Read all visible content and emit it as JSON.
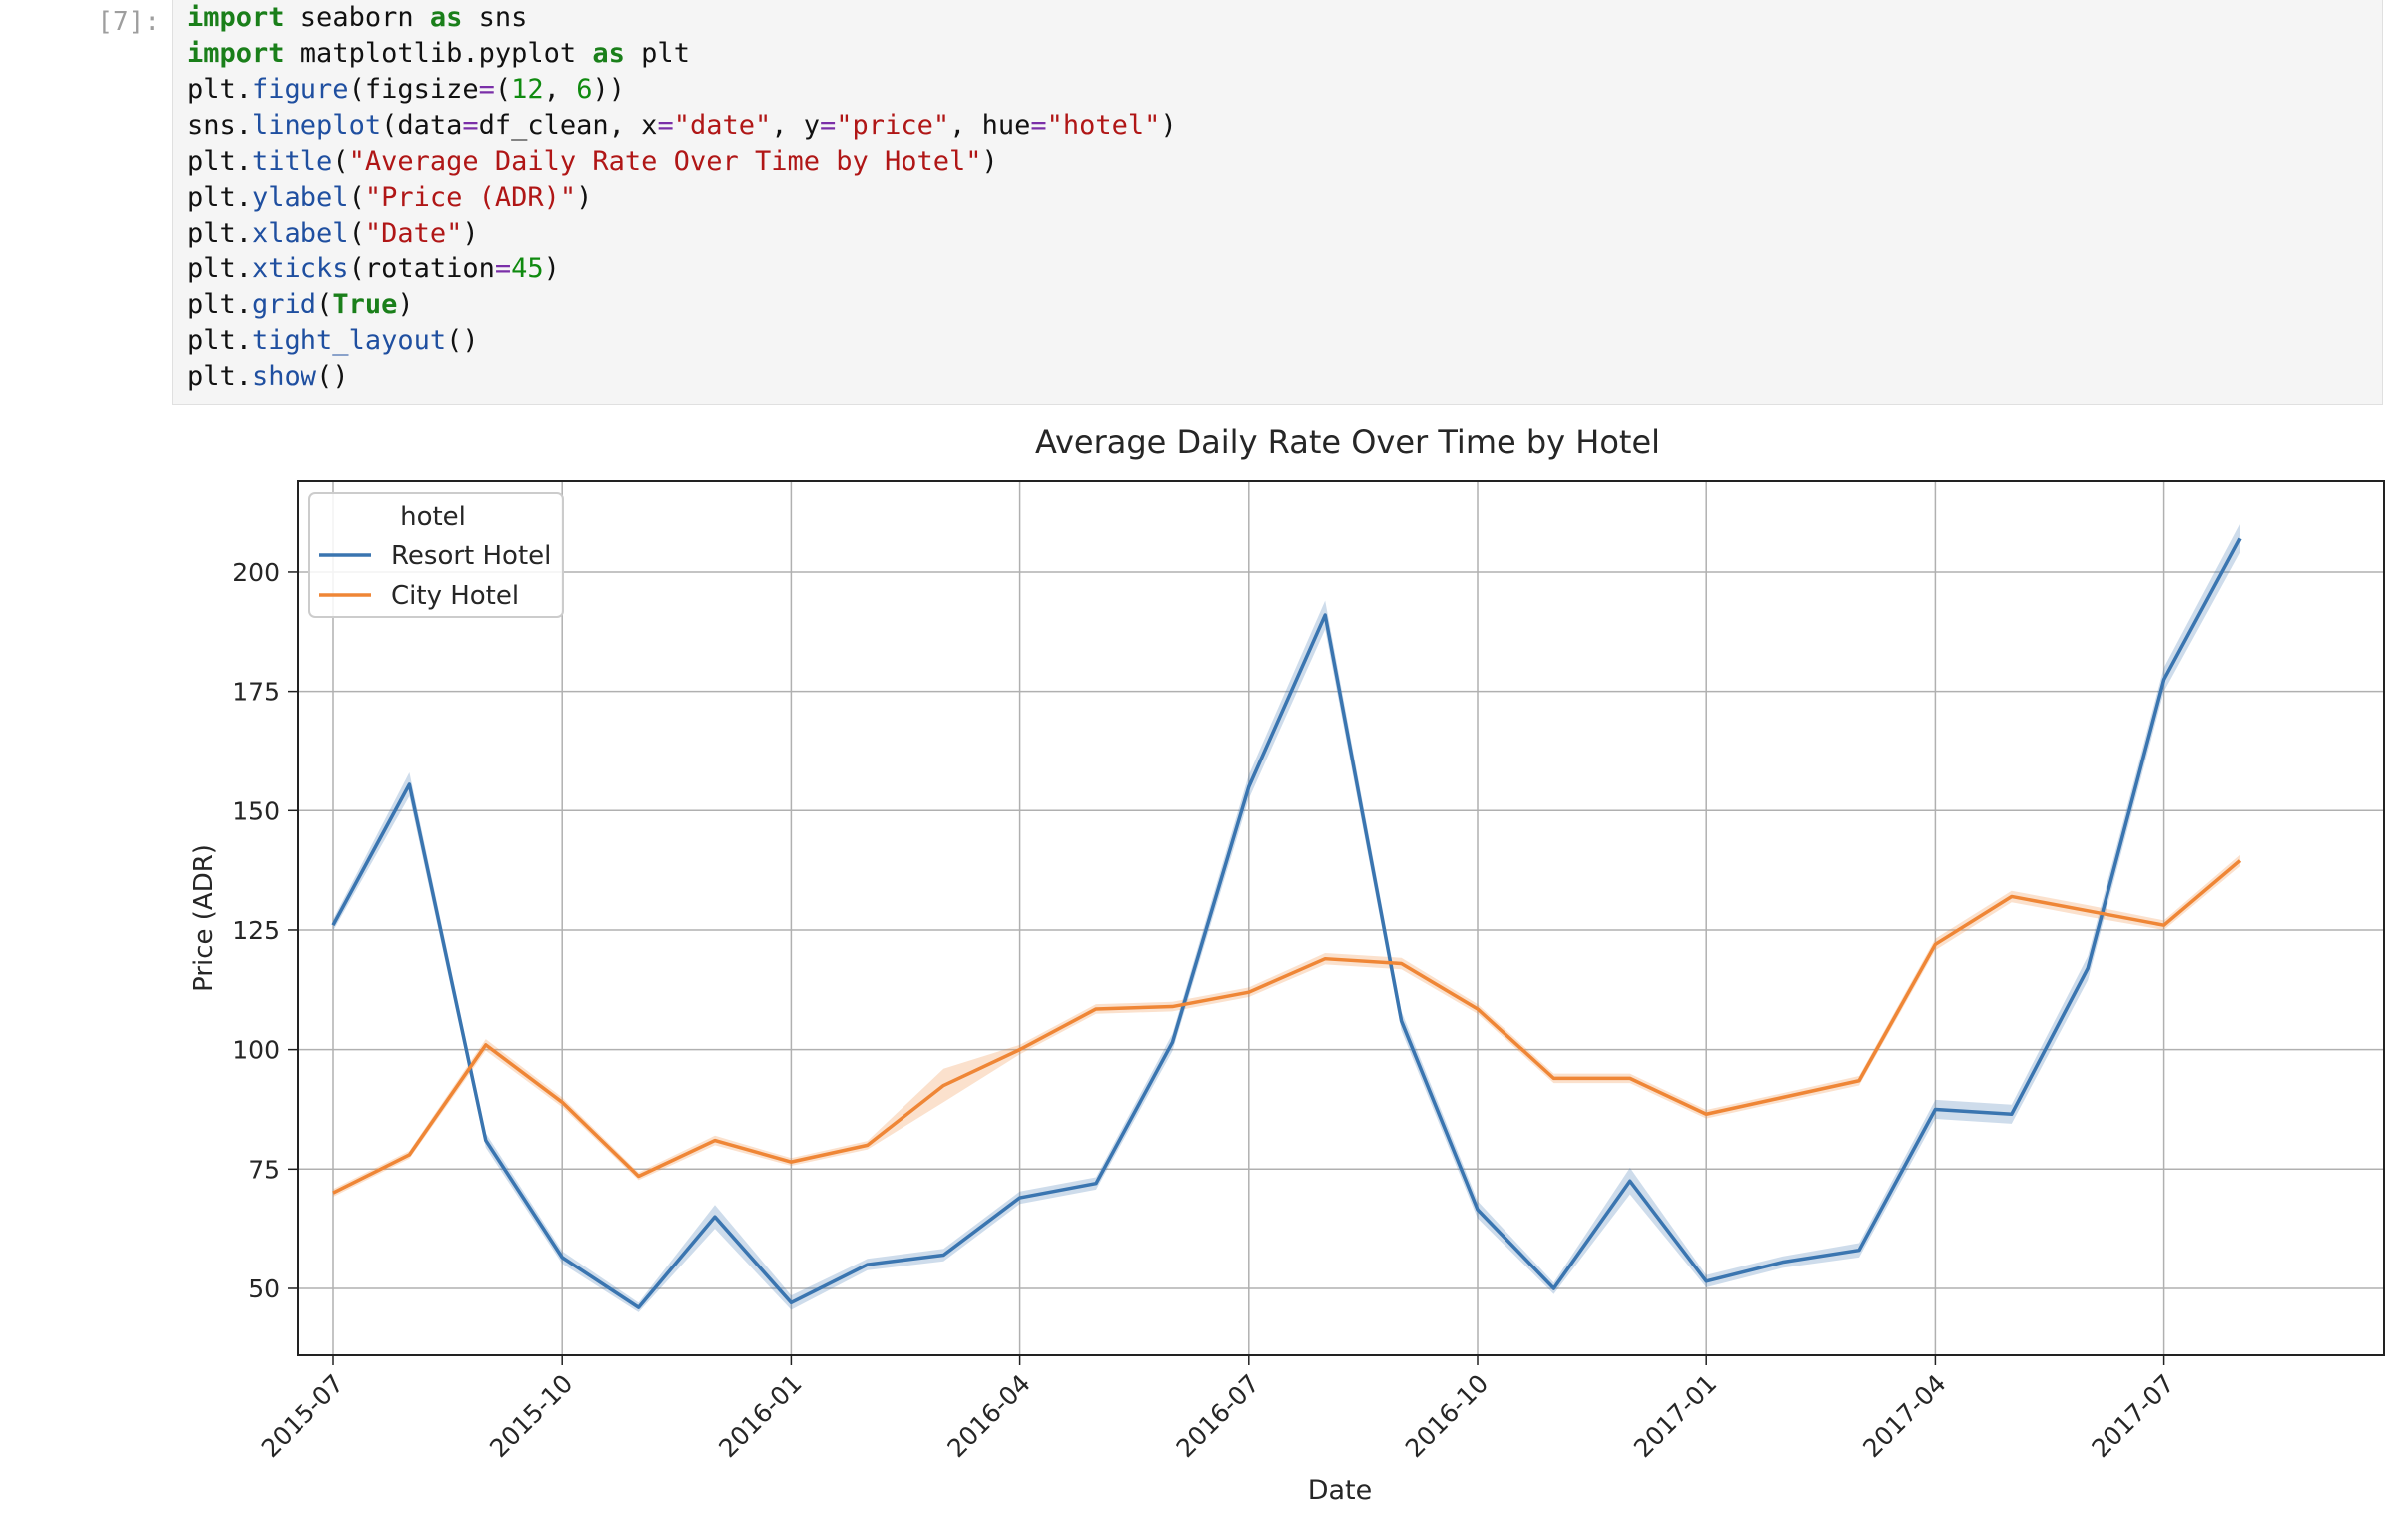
{
  "cell": {
    "prompt": "[7]:",
    "code_lines": [
      [
        {
          "t": "import",
          "c": "kw"
        },
        {
          "t": " seaborn "
        },
        {
          "t": "as",
          "c": "kw"
        },
        {
          "t": " sns"
        }
      ],
      [
        {
          "t": "import",
          "c": "kw"
        },
        {
          "t": " matplotlib.pyplot "
        },
        {
          "t": "as",
          "c": "kw"
        },
        {
          "t": " plt"
        }
      ],
      [
        {
          "t": "plt."
        },
        {
          "t": "figure",
          "c": "fn"
        },
        {
          "t": "(figsize"
        },
        {
          "t": "=",
          "c": "op"
        },
        {
          "t": "("
        },
        {
          "t": "12",
          "c": "num"
        },
        {
          "t": ", "
        },
        {
          "t": "6",
          "c": "num"
        },
        {
          "t": "))"
        }
      ],
      [
        {
          "t": "sns."
        },
        {
          "t": "lineplot",
          "c": "fn"
        },
        {
          "t": "(data"
        },
        {
          "t": "=",
          "c": "op"
        },
        {
          "t": "df_clean, x"
        },
        {
          "t": "=",
          "c": "op"
        },
        {
          "t": "\"date\"",
          "c": "str"
        },
        {
          "t": ", y"
        },
        {
          "t": "=",
          "c": "op"
        },
        {
          "t": "\"price\"",
          "c": "str"
        },
        {
          "t": ", hue"
        },
        {
          "t": "=",
          "c": "op"
        },
        {
          "t": "\"hotel\"",
          "c": "str"
        },
        {
          "t": ")"
        }
      ],
      [
        {
          "t": "plt."
        },
        {
          "t": "title",
          "c": "fn"
        },
        {
          "t": "("
        },
        {
          "t": "\"Average Daily Rate Over Time by Hotel\"",
          "c": "str"
        },
        {
          "t": ")"
        }
      ],
      [
        {
          "t": "plt."
        },
        {
          "t": "ylabel",
          "c": "fn"
        },
        {
          "t": "("
        },
        {
          "t": "\"Price (ADR)\"",
          "c": "str"
        },
        {
          "t": ")"
        }
      ],
      [
        {
          "t": "plt."
        },
        {
          "t": "xlabel",
          "c": "fn"
        },
        {
          "t": "("
        },
        {
          "t": "\"Date\"",
          "c": "str"
        },
        {
          "t": ")"
        }
      ],
      [
        {
          "t": "plt."
        },
        {
          "t": "xticks",
          "c": "fn"
        },
        {
          "t": "(rotation"
        },
        {
          "t": "=",
          "c": "op"
        },
        {
          "t": "45",
          "c": "num"
        },
        {
          "t": ")"
        }
      ],
      [
        {
          "t": "plt."
        },
        {
          "t": "grid",
          "c": "fn"
        },
        {
          "t": "("
        },
        {
          "t": "True",
          "c": "kw"
        },
        {
          "t": ")"
        }
      ],
      [
        {
          "t": "plt."
        },
        {
          "t": "tight_layout",
          "c": "fn"
        },
        {
          "t": "()"
        }
      ],
      [
        {
          "t": "plt."
        },
        {
          "t": "show",
          "c": "fn"
        },
        {
          "t": "()"
        }
      ]
    ]
  },
  "chart_data": {
    "type": "line",
    "title": "Average Daily Rate Over Time by Hotel",
    "xlabel": "Date",
    "ylabel": "Price (ADR)",
    "x": [
      "2015-07",
      "2015-08",
      "2015-09",
      "2015-10",
      "2015-11",
      "2015-12",
      "2016-01",
      "2016-02",
      "2016-03",
      "2016-04",
      "2016-05",
      "2016-06",
      "2016-07",
      "2016-08",
      "2016-09",
      "2016-10",
      "2016-11",
      "2016-12",
      "2017-01",
      "2017-02",
      "2017-03",
      "2017-04",
      "2017-05",
      "2017-06",
      "2017-07",
      "2017-08"
    ],
    "x_ticks": [
      "2015-07",
      "2015-10",
      "2016-01",
      "2016-04",
      "2016-07",
      "2016-10",
      "2017-01",
      "2017-04",
      "2017-07"
    ],
    "y_ticks": [
      50,
      75,
      100,
      125,
      150,
      175,
      200
    ],
    "ylim": [
      36,
      219
    ],
    "grid": true,
    "legend": {
      "title": "hotel",
      "placement": "top-left"
    },
    "series": [
      {
        "name": "Resort Hotel",
        "color": "#3a75b0",
        "values": [
          126,
          155.5,
          81,
          56.5,
          46,
          65,
          47,
          55,
          57,
          69,
          72,
          101.5,
          155,
          191,
          106,
          66.5,
          50,
          72.5,
          51.5,
          55.5,
          58,
          87.5,
          86.5,
          117,
          177.5,
          207
        ],
        "ci": [
          1.2,
          2.5,
          1.5,
          1.3,
          1.0,
          2.5,
          1.5,
          1.2,
          1.3,
          1.3,
          1.3,
          1.8,
          2.5,
          3.0,
          2.0,
          1.8,
          1.2,
          2.8,
          1.3,
          1.2,
          1.5,
          2.0,
          2.0,
          2.5,
          2.5,
          3.0
        ]
      },
      {
        "name": "City Hotel",
        "color": "#ef8636",
        "values": [
          70,
          78,
          101,
          89,
          73.5,
          81,
          76.5,
          80,
          92.5,
          100,
          108.5,
          109,
          112,
          119,
          118,
          108.5,
          94,
          94,
          86.5,
          90,
          93.5,
          122,
          132,
          129,
          126,
          139.5
        ],
        "ci": [
          0.8,
          0.8,
          1.2,
          1.0,
          0.8,
          1.0,
          0.8,
          0.9,
          3.5,
          1.0,
          1.0,
          1.0,
          1.0,
          1.2,
          1.2,
          1.0,
          1.0,
          1.0,
          0.9,
          0.9,
          1.0,
          1.2,
          1.2,
          1.2,
          1.0,
          1.2
        ]
      }
    ]
  }
}
